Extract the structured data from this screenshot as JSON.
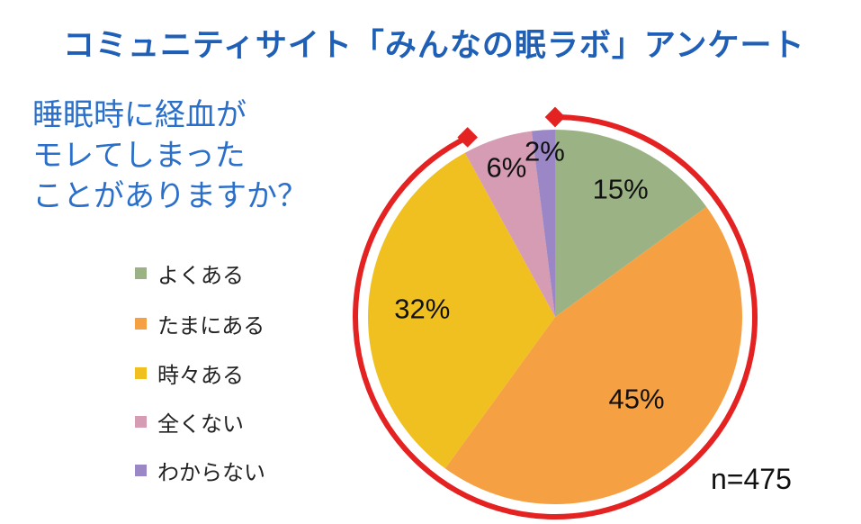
{
  "title": "コミュニティサイト「みんなの眠ラボ」アンケート",
  "question_lines": [
    "睡眠時に経血が",
    "モレてしまった",
    "ことがありますか？"
  ],
  "sample_size": "n=475",
  "chart_data": {
    "type": "pie",
    "categories": [
      "よくある",
      "たまにある",
      "時々ある",
      "全くない",
      "わからない"
    ],
    "values": [
      15,
      45,
      32,
      6,
      2
    ],
    "labels": [
      "15%",
      "45%",
      "32%",
      "6%",
      "2%"
    ],
    "colors": [
      "#9bb384",
      "#f5a043",
      "#f0c020",
      "#d59cb3",
      "#9b86c6"
    ],
    "start_angle_deg": 0,
    "direction": "clockwise",
    "legend_position": "left",
    "highlight_arc_color": "#e52222"
  }
}
